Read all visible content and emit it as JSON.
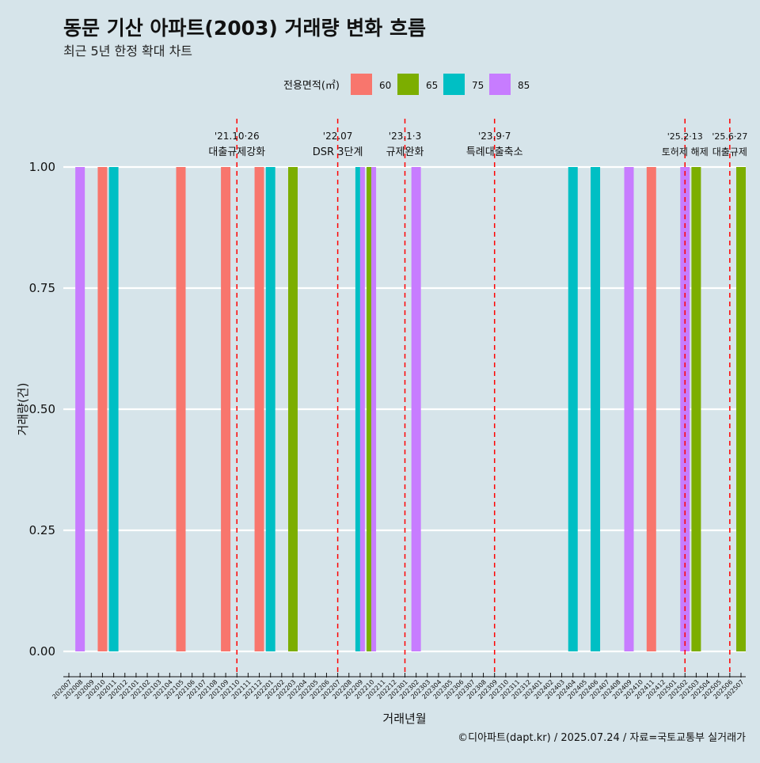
{
  "chart_data": {
    "type": "bar",
    "title": "동문 기산 아파트(2003) 거래량 변화 흐름",
    "subtitle": "최근 5년 한정 확대 차트",
    "xlabel": "거래년월",
    "ylabel": "거래량(건)",
    "caption": "©디아파트(dapt.kr) / 2025.07.24 / 자료=국토교통부 실거래가",
    "legend": {
      "title": "전용면적(㎡)",
      "position": "top",
      "entries": [
        {
          "name": "60",
          "color": "#F8766D"
        },
        {
          "name": "65",
          "color": "#7CAE00"
        },
        {
          "name": "75",
          "color": "#00BFC4"
        },
        {
          "name": "85",
          "color": "#C77CFF"
        }
      ]
    },
    "ylim": [
      0,
      1
    ],
    "yticks": [
      0.0,
      0.25,
      0.5,
      0.75,
      1.0
    ],
    "ytick_labels": [
      "0.00",
      "0.25",
      "0.50",
      "0.75",
      "1.00"
    ],
    "grid": true,
    "categories": [
      "202007",
      "202008",
      "202009",
      "202010",
      "202011",
      "202012",
      "202101",
      "202102",
      "202103",
      "202104",
      "202105",
      "202106",
      "202107",
      "202108",
      "202109",
      "202110",
      "202111",
      "202112",
      "202201",
      "202202",
      "202203",
      "202204",
      "202205",
      "202206",
      "202207",
      "202208",
      "202209",
      "202210",
      "202211",
      "202212",
      "202301",
      "202302",
      "202303",
      "202304",
      "202305",
      "202306",
      "202307",
      "202308",
      "202309",
      "202310",
      "202311",
      "202312",
      "202401",
      "202402",
      "202403",
      "202404",
      "202405",
      "202406",
      "202407",
      "202408",
      "202409",
      "202410",
      "202411",
      "202412",
      "202501",
      "202502",
      "202503",
      "202504",
      "202505",
      "202506",
      "202507"
    ],
    "bars": [
      {
        "month": "202008",
        "area": "85",
        "value": 1
      },
      {
        "month": "202010",
        "area": "60",
        "value": 1
      },
      {
        "month": "202011",
        "area": "75",
        "value": 1
      },
      {
        "month": "202105",
        "area": "60",
        "value": 1
      },
      {
        "month": "202109",
        "area": "60",
        "value": 1
      },
      {
        "month": "202112",
        "area": "60",
        "value": 1
      },
      {
        "month": "202201",
        "area": "75",
        "value": 1
      },
      {
        "month": "202203",
        "area": "65",
        "value": 1
      },
      {
        "month": "202209",
        "area": "75",
        "value": 1
      },
      {
        "month": "202209",
        "area": "85",
        "value": 1
      },
      {
        "month": "202210",
        "area": "65",
        "value": 1
      },
      {
        "month": "202210",
        "area": "85",
        "value": 1
      },
      {
        "month": "202302",
        "area": "85",
        "value": 1
      },
      {
        "month": "202404",
        "area": "75",
        "value": 1
      },
      {
        "month": "202406",
        "area": "75",
        "value": 1
      },
      {
        "month": "202409",
        "area": "85",
        "value": 1
      },
      {
        "month": "202411",
        "area": "60",
        "value": 1
      },
      {
        "month": "202502",
        "area": "85",
        "value": 1
      },
      {
        "month": "202503",
        "area": "65",
        "value": 1
      },
      {
        "month": "202507",
        "area": "65",
        "value": 1
      }
    ],
    "events": [
      {
        "month": "202110",
        "date": "'21.10·26",
        "label": "대출규제강화"
      },
      {
        "month": "202207",
        "date": "'22.07",
        "label": "DSR 3단계"
      },
      {
        "month": "202301",
        "date": "'23.1·3",
        "label": "규제완화"
      },
      {
        "month": "202309",
        "date": "'23.9·7",
        "label": "특례대출축소"
      },
      {
        "month": "202502",
        "date": "'25.2·13",
        "label": "토허제 해제"
      },
      {
        "month": "202506",
        "date": "'25.6·27",
        "label": "대출규제"
      }
    ],
    "event_line_color": "#FF0000",
    "grid_color": "#FFFFFF"
  }
}
